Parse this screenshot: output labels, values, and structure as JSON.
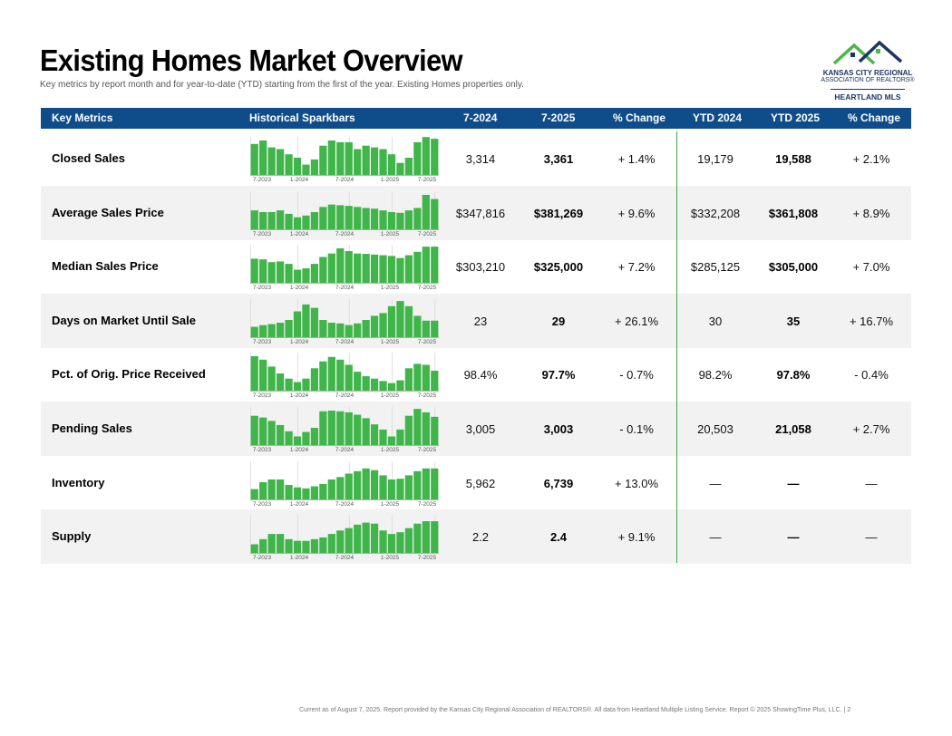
{
  "title": "Existing Homes Market Overview",
  "subtitle": "Key metrics by report month and for year-to-date (YTD) starting from the first of the year. Existing Homes properties only.",
  "logo": {
    "line1": "KANSAS CITY REGIONAL",
    "line2": "ASSOCIATION OF REALTORS®",
    "line3": "HEARTLAND MLS"
  },
  "headers": [
    "Key Metrics",
    "Historical Sparkbars",
    "7-2024",
    "7-2025",
    "% Change",
    "YTD 2024",
    "YTD 2025",
    "% Change"
  ],
  "spark_axis_labels": [
    "7-2023",
    "1-2024",
    "7-2024",
    "1-2025",
    "7-2025"
  ],
  "colors": {
    "header_bg": "#0f4d8a",
    "bar": "#3fb54a",
    "divider": "#3aa64a",
    "row_shade": "#f2f2f2"
  },
  "rows": [
    {
      "label": "Closed Sales",
      "m2024": "3,314",
      "m2025": "3,361",
      "mchg": "+ 1.4%",
      "y2024": "19,179",
      "y2025": "19,588",
      "ychg": "+ 2.1%",
      "bars": [
        0.9,
        1.0,
        0.8,
        0.75,
        0.6,
        0.5,
        0.3,
        0.45,
        0.85,
        1.0,
        0.95,
        0.95,
        0.75,
        0.85,
        0.8,
        0.75,
        0.6,
        0.35,
        0.5,
        0.95,
        1.1,
        1.05
      ]
    },
    {
      "label": "Average Sales Price",
      "m2024": "$347,816",
      "m2025": "$381,269",
      "mchg": "+ 9.6%",
      "y2024": "$332,208",
      "y2025": "$361,808",
      "ychg": "+ 8.9%",
      "bars": [
        0.55,
        0.5,
        0.5,
        0.55,
        0.45,
        0.35,
        0.4,
        0.5,
        0.65,
        0.72,
        0.7,
        0.68,
        0.65,
        0.62,
        0.6,
        0.55,
        0.5,
        0.48,
        0.55,
        0.62,
        1.0,
        0.88
      ]
    },
    {
      "label": "Median Sales Price",
      "m2024": "$303,210",
      "m2025": "$325,000",
      "mchg": "+ 7.2%",
      "y2024": "$285,125",
      "y2025": "$305,000",
      "ychg": "+ 7.0%",
      "bars": [
        0.7,
        0.68,
        0.6,
        0.62,
        0.55,
        0.38,
        0.42,
        0.55,
        0.75,
        0.85,
        1.0,
        0.92,
        0.85,
        0.84,
        0.82,
        0.8,
        0.78,
        0.72,
        0.8,
        0.9,
        1.05,
        1.05
      ]
    },
    {
      "label": "Days on Market Until Sale",
      "m2024": "23",
      "m2025": "29",
      "mchg": "+ 26.1%",
      "y2024": "30",
      "y2025": "35",
      "ychg": "+ 16.7%",
      "bars": [
        0.3,
        0.35,
        0.38,
        0.42,
        0.5,
        0.75,
        0.95,
        0.85,
        0.5,
        0.42,
        0.4,
        0.35,
        0.4,
        0.5,
        0.62,
        0.7,
        0.9,
        1.05,
        0.9,
        0.62,
        0.48,
        0.48
      ]
    },
    {
      "label": "Pct. of Orig. Price Received",
      "m2024": "98.4%",
      "m2025": "97.7%",
      "mchg": "- 0.7%",
      "y2024": "98.2%",
      "y2025": "97.8%",
      "ychg": "- 0.4%",
      "bars": [
        1.0,
        0.9,
        0.7,
        0.5,
        0.35,
        0.25,
        0.35,
        0.65,
        0.85,
        0.98,
        0.9,
        0.75,
        0.55,
        0.42,
        0.35,
        0.28,
        0.22,
        0.3,
        0.65,
        0.78,
        0.75,
        0.58
      ]
    },
    {
      "label": "Pending Sales",
      "m2024": "3,005",
      "m2025": "3,003",
      "mchg": "- 0.1%",
      "y2024": "20,503",
      "y2025": "21,058",
      "ychg": "+ 2.7%",
      "bars": [
        0.85,
        0.8,
        0.7,
        0.58,
        0.4,
        0.25,
        0.38,
        0.5,
        0.98,
        1.0,
        0.98,
        0.95,
        0.88,
        0.78,
        0.6,
        0.45,
        0.25,
        0.45,
        0.85,
        1.05,
        0.95,
        0.82
      ]
    },
    {
      "label": "Inventory",
      "m2024": "5,962",
      "m2025": "6,739",
      "mchg": "+ 13.0%",
      "y2024": "—",
      "y2025": "—",
      "ychg": "—",
      "bars": [
        0.3,
        0.5,
        0.58,
        0.58,
        0.42,
        0.35,
        0.32,
        0.38,
        0.45,
        0.58,
        0.65,
        0.75,
        0.82,
        0.9,
        0.85,
        0.7,
        0.58,
        0.6,
        0.7,
        0.82,
        0.9,
        0.9
      ]
    },
    {
      "label": "Supply",
      "m2024": "2.2",
      "m2025": "2.4",
      "mchg": "+ 9.1%",
      "y2024": "—",
      "y2025": "—",
      "ychg": "—",
      "bars": [
        0.25,
        0.4,
        0.55,
        0.55,
        0.4,
        0.35,
        0.35,
        0.4,
        0.45,
        0.55,
        0.65,
        0.72,
        0.82,
        0.88,
        0.85,
        0.65,
        0.55,
        0.6,
        0.72,
        0.85,
        0.92,
        0.92
      ]
    }
  ],
  "footer": "Current as of August 7, 2025. Report provided by the Kansas City Regional Association of REALTORS®. All data from Heartland Multiple Listing Service. Report © 2025 ShowingTime Plus, LLC.  |  2"
}
